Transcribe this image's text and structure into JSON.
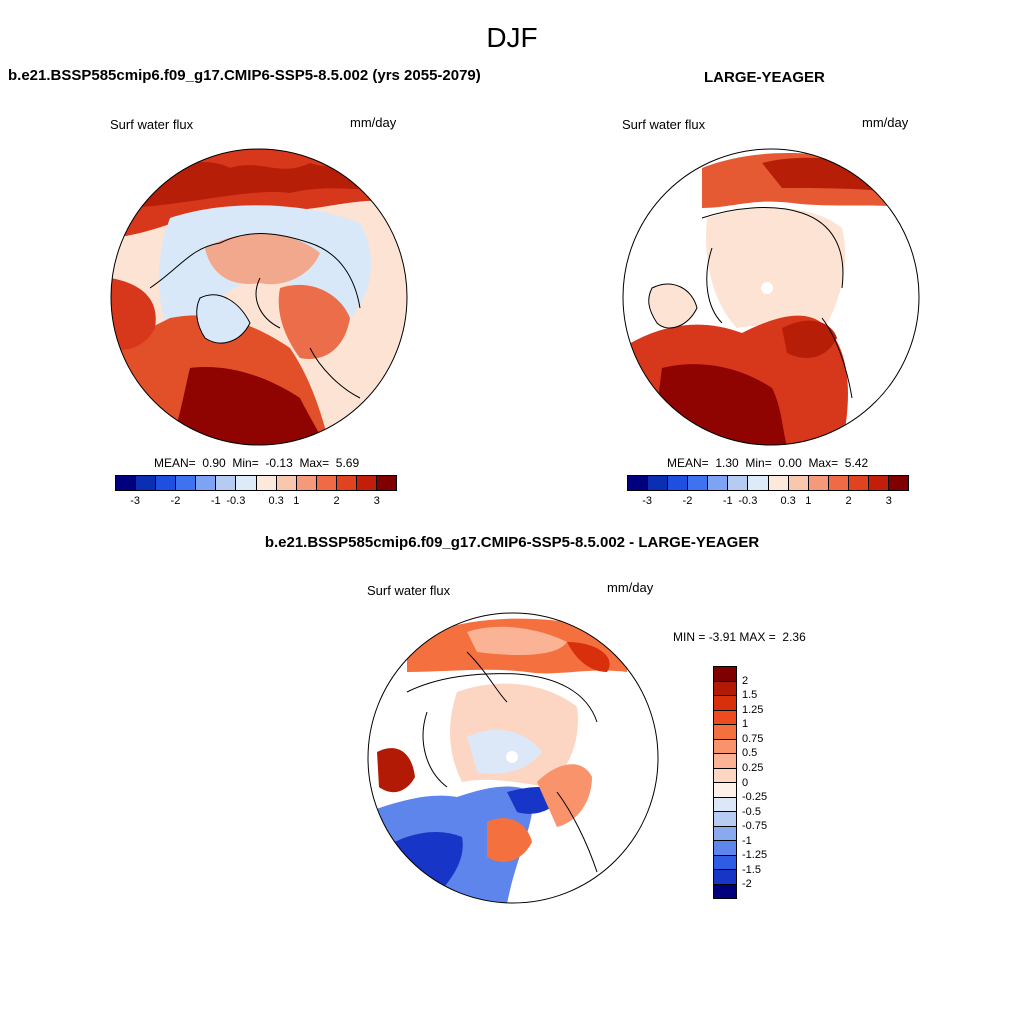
{
  "figure": {
    "title": "DJF"
  },
  "panel_left": {
    "title": "b.e21.BSSP585cmip6.f09_g17.CMIP6-SSP5-8.5.002 (yrs 2055-2079)",
    "variable": "Surf water flux",
    "units": "mm/day",
    "stats": {
      "mean_label": "MEAN=",
      "mean": "0.90",
      "min_label": "Min=",
      "min": "-0.13",
      "max_label": "Max=",
      "max": "5.69"
    }
  },
  "panel_right": {
    "title": "LARGE-YEAGER",
    "variable": "Surf water flux",
    "units": "mm/day",
    "stats": {
      "mean_label": "MEAN=",
      "mean": "1.30",
      "min_label": "Min=",
      "min": "0.00",
      "max_label": "Max=",
      "max": "5.42"
    }
  },
  "panel_diff": {
    "title": "b.e21.BSSP585cmip6.f09_g17.CMIP6-SSP5-8.5.002 - LARGE-YEAGER",
    "variable": "Surf water flux",
    "units": "mm/day",
    "minmax": {
      "min_label": "MIN =",
      "min": "-3.91",
      "max_label": "MAX =",
      "max": "2.36"
    }
  },
  "colorbar_main": {
    "tick_labels": [
      "-3",
      "-2",
      "-1",
      "-0.3",
      "0.3",
      "1",
      "2",
      "3"
    ],
    "colors": [
      "#00007f",
      "#0a2fb3",
      "#1f4fe0",
      "#3f72f0",
      "#7ea3f2",
      "#b5cbf2",
      "#ddeaf8",
      "#fde8dc",
      "#f9c6ae",
      "#f59a79",
      "#ee6b45",
      "#e1421f",
      "#c21e0a",
      "#7f0000"
    ]
  },
  "colorbar_diff": {
    "tick_labels": [
      "2",
      "1.5",
      "1.25",
      "1",
      "0.75",
      "0.5",
      "0.25",
      "0",
      "-0.25",
      "-0.5",
      "-0.75",
      "-1",
      "-1.25",
      "-1.5",
      "-2"
    ],
    "colors": [
      "#7f0000",
      "#b31a05",
      "#d8300c",
      "#ee4b21",
      "#f5703f",
      "#f8936b",
      "#fab394",
      "#fdd6c3",
      "#fdf1e9",
      "#dce8f7",
      "#b6ccf2",
      "#8aaaf0",
      "#5d85ec",
      "#2f5ce5",
      "#1736c7",
      "#00007f"
    ]
  }
}
